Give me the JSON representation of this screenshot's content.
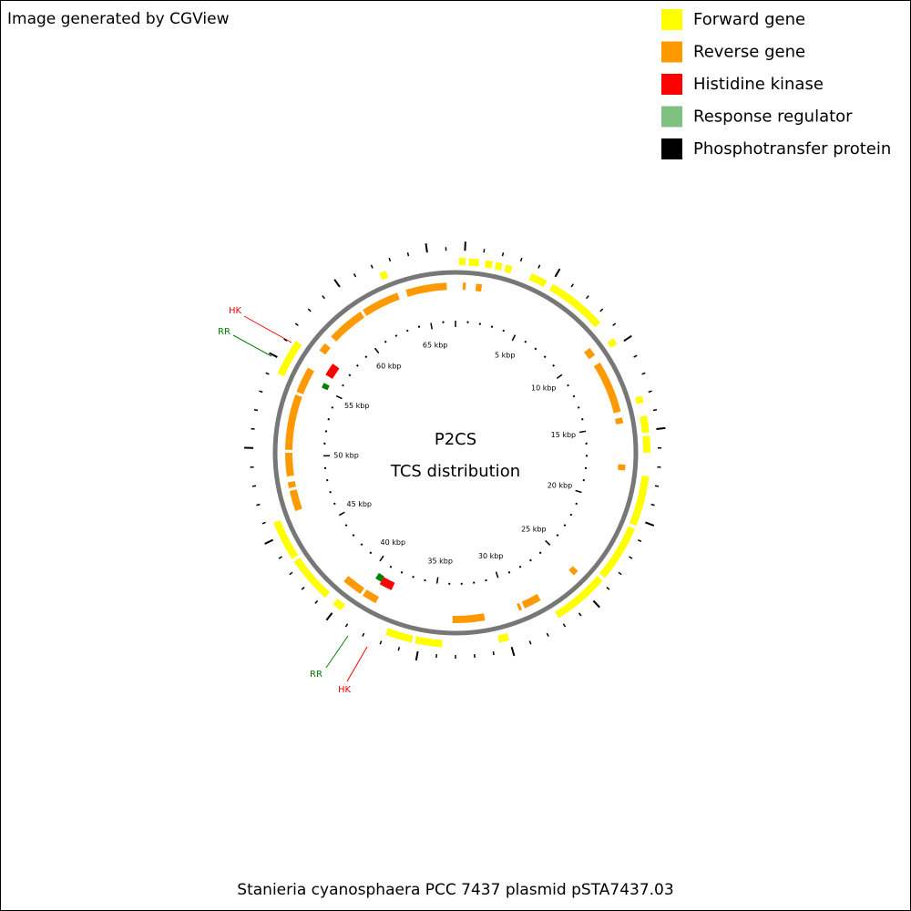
{
  "header": {
    "title": "Image generated by CGView"
  },
  "legend": {
    "items": [
      {
        "label": "Forward gene",
        "color": "#ffff00"
      },
      {
        "label": "Reverse gene",
        "color": "#ff9900"
      },
      {
        "label": "Histidine kinase",
        "color": "#ff0000"
      },
      {
        "label": "Response regulator",
        "color": "#80c080"
      },
      {
        "label": "Phosphotransfer protein",
        "color": "#000000"
      }
    ]
  },
  "center": {
    "line1": "P2CS",
    "line2": "TCS distribution"
  },
  "ruler": {
    "labels": [
      "5 kbp",
      "10 kbp",
      "15 kbp",
      "20 kbp",
      "25 kbp",
      "30 kbp",
      "35 kbp",
      "40 kbp",
      "45 kbp",
      "50 kbp",
      "55 kbp",
      "60 kbp",
      "65 kbp"
    ]
  },
  "annotations": {
    "labels": [
      "HK",
      "RR",
      "RR",
      "HK"
    ]
  },
  "footer": {
    "caption": "Stanieria cyanosphaera PCC 7437 plasmid pSTA7437.03"
  }
}
